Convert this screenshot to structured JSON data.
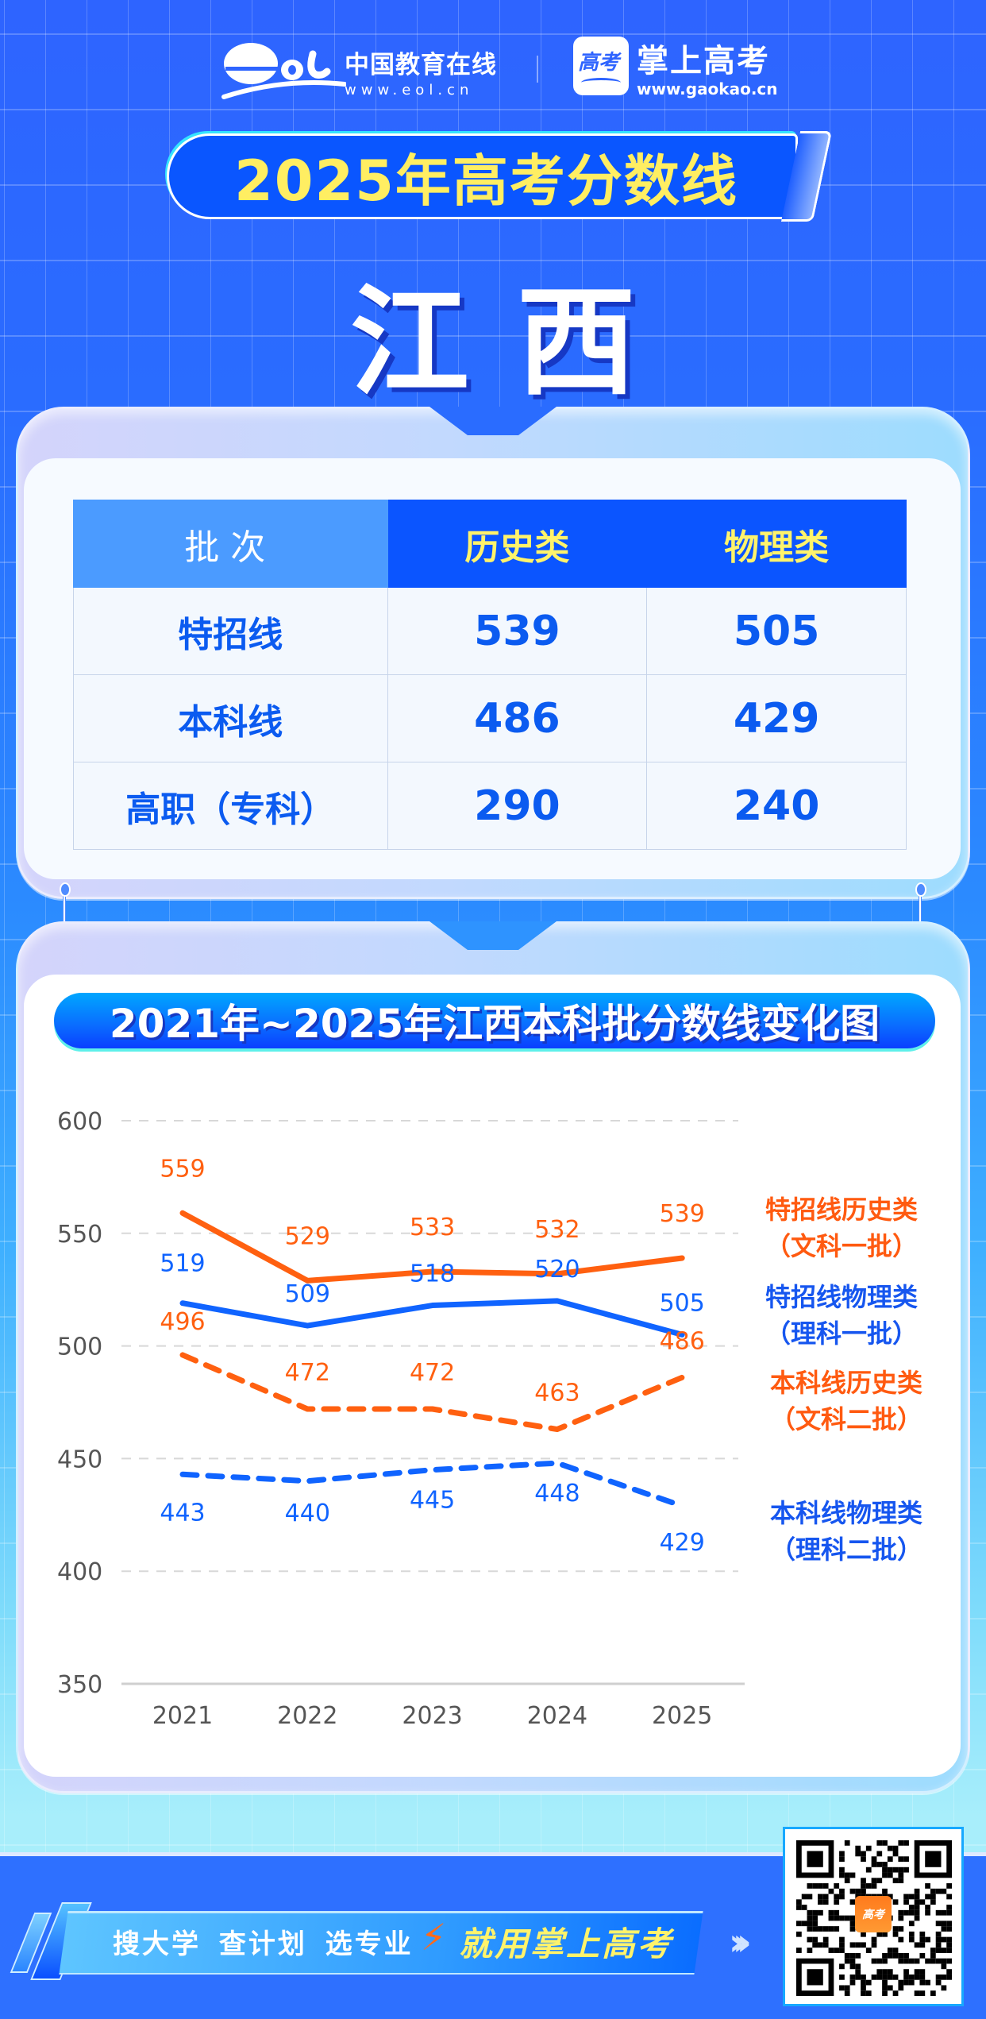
{
  "header": {
    "eol": {
      "name": "中国教育在线",
      "url": "www.eol.cn"
    },
    "gaokao": {
      "name": "掌上高考",
      "url": "www.gaokao.cn",
      "icon_text": "高考"
    }
  },
  "title": "2025年高考分数线",
  "province": "江西",
  "table": {
    "headers": [
      "批次",
      "历史类",
      "物理类"
    ],
    "rows": [
      {
        "label": "特招线",
        "history": "539",
        "physics": "505"
      },
      {
        "label": "本科线",
        "history": "486",
        "physics": "429"
      },
      {
        "label": "高职（专科）",
        "history": "290",
        "physics": "240"
      }
    ]
  },
  "chart_title": "2021年~2025年江西本科批分数线变化图",
  "chart_data": {
    "type": "line",
    "title": "2021年~2025年江西本科批分数线变化图",
    "xlabel": "",
    "ylabel": "",
    "categories": [
      "2021",
      "2022",
      "2023",
      "2024",
      "2025"
    ],
    "ylim": [
      350,
      600
    ],
    "yticks": [
      600,
      550,
      500,
      450,
      400,
      350
    ],
    "grid": true,
    "legend_position": "right",
    "series": [
      {
        "name": "特招线历史类（文科一批）",
        "legend_line1": "特招线历史类",
        "legend_line2": "（文科一批）",
        "color": "#ff6010",
        "style": "solid",
        "values": [
          559,
          529,
          533,
          532,
          539
        ]
      },
      {
        "name": "特招线物理类（理科一批）",
        "legend_line1": "特招线物理类",
        "legend_line2": "（理科一批）",
        "color": "#1064ff",
        "style": "solid",
        "values": [
          519,
          509,
          518,
          520,
          505
        ]
      },
      {
        "name": "本科线历史类（文科二批）",
        "legend_line1": "本科线历史类",
        "legend_line2": "（文科二批）",
        "color": "#ff6010",
        "style": "dashed",
        "values": [
          496,
          472,
          472,
          463,
          486
        ]
      },
      {
        "name": "本科线物理类（理科二批）",
        "legend_line1": "本科线物理类",
        "legend_line2": "（理科二批）",
        "color": "#1064ff",
        "style": "dashed",
        "values": [
          443,
          440,
          445,
          448,
          429
        ]
      }
    ]
  },
  "footer": {
    "slogan": "搜大学 查计划 选专业",
    "cta": "就用掌上高考",
    "qr_logo_text": "高考"
  }
}
